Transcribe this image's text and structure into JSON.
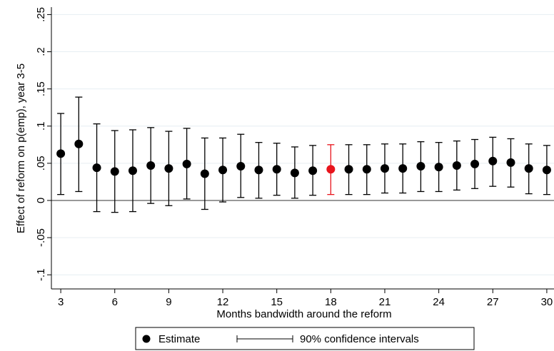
{
  "chart_data": {
    "type": "errorbar",
    "y_label": "Effect of reform on p(emp), year 3-5",
    "x_label": "Months bandwidth around the reform",
    "x": [
      3,
      4,
      5,
      6,
      7,
      8,
      9,
      10,
      11,
      12,
      13,
      14,
      15,
      16,
      17,
      18,
      19,
      20,
      21,
      22,
      23,
      24,
      25,
      26,
      27,
      28,
      29,
      30
    ],
    "series": [
      {
        "name": "Estimate",
        "color": "#000000",
        "values": [
          0.063,
          0.076,
          0.044,
          0.039,
          0.04,
          0.047,
          0.043,
          0.049,
          0.036,
          0.041,
          0.046,
          0.041,
          0.042,
          0.037,
          0.04,
          0.042,
          0.042,
          0.042,
          0.043,
          0.043,
          0.046,
          0.045,
          0.047,
          0.049,
          0.053,
          0.051,
          0.043,
          0.041
        ],
        "point_colors": [
          "#000000",
          "#000000",
          "#000000",
          "#000000",
          "#000000",
          "#000000",
          "#000000",
          "#000000",
          "#000000",
          "#000000",
          "#000000",
          "#000000",
          "#000000",
          "#000000",
          "#000000",
          "#e8141c",
          "#000000",
          "#000000",
          "#000000",
          "#000000",
          "#000000",
          "#000000",
          "#000000",
          "#000000",
          "#000000",
          "#000000",
          "#000000",
          "#000000"
        ]
      }
    ],
    "interval": {
      "name": "90% confidence intervals",
      "lower": [
        0.008,
        0.012,
        -0.015,
        -0.016,
        -0.015,
        -0.004,
        -0.007,
        0.002,
        -0.012,
        -0.002,
        0.004,
        0.003,
        0.007,
        0.003,
        0.007,
        0.008,
        0.008,
        0.008,
        0.01,
        0.01,
        0.012,
        0.012,
        0.014,
        0.016,
        0.019,
        0.018,
        0.009,
        0.008
      ],
      "upper": [
        0.117,
        0.139,
        0.103,
        0.094,
        0.095,
        0.098,
        0.093,
        0.097,
        0.084,
        0.084,
        0.089,
        0.078,
        0.077,
        0.072,
        0.074,
        0.075,
        0.075,
        0.075,
        0.076,
        0.076,
        0.079,
        0.078,
        0.08,
        0.082,
        0.085,
        0.083,
        0.076,
        0.074
      ]
    },
    "xlim": [
      2.48,
      30.4
    ],
    "xticks": [
      3,
      6,
      9,
      12,
      15,
      18,
      21,
      24,
      27,
      30
    ],
    "ylim": [
      -0.119,
      0.26
    ],
    "yticks": [
      {
        "value": -0.1,
        "label": "-.1"
      },
      {
        "value": -0.05,
        "label": "-.05"
      },
      0,
      {
        "value": 0.05,
        "label": ".05"
      },
      {
        "value": 0.1,
        "label": ".1"
      },
      {
        "value": 0.15,
        "label": ".15"
      },
      {
        "value": 0.2,
        "label": ".2"
      },
      {
        "value": 0.25,
        "label": ".25"
      }
    ],
    "grid": true,
    "reference_line": 0,
    "legend": "bottom"
  }
}
